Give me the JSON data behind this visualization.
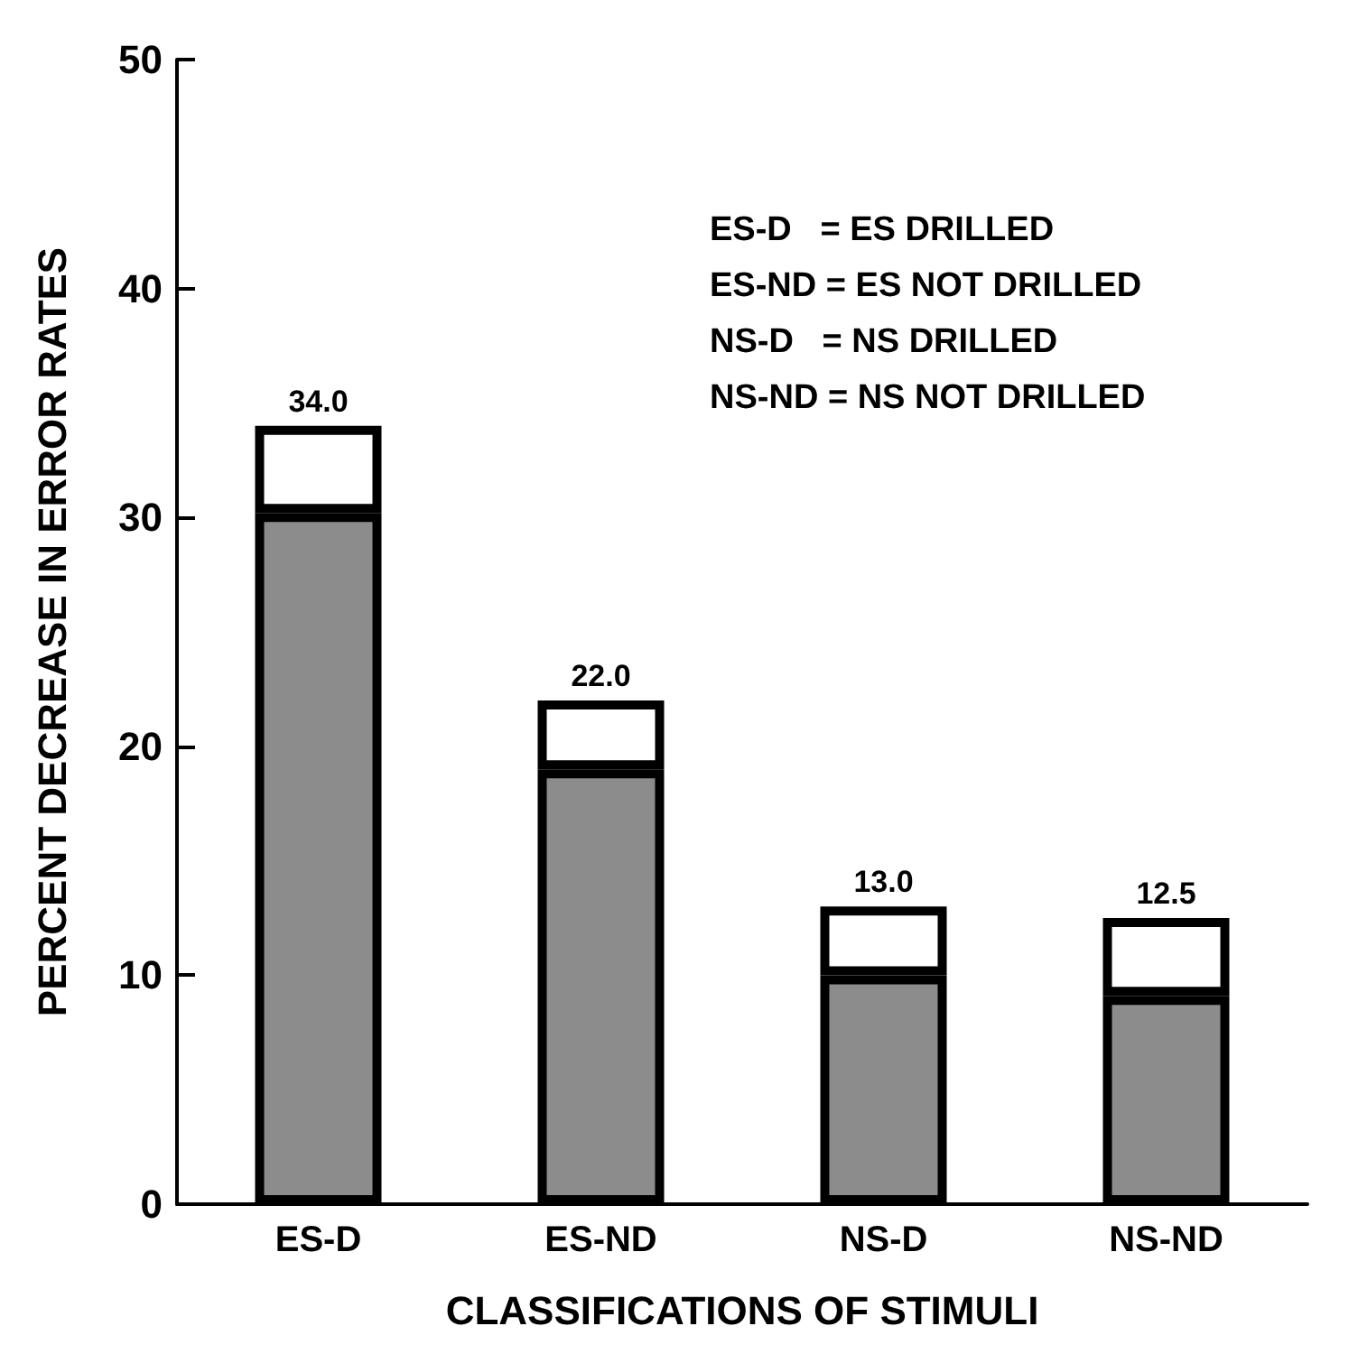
{
  "chart_data": {
    "type": "bar",
    "stacked": true,
    "xlabel": "CLASSIFICATIONS OF STIMULI",
    "ylabel": "PERCENT DECREASE IN ERROR RATES",
    "categories": [
      "ES-D",
      "ES-ND",
      "NS-D",
      "NS-ND"
    ],
    "series": [
      {
        "color": "#8c8c8c",
        "values": [
          30.2,
          19.0,
          10.0,
          9.1
        ]
      },
      {
        "color": "#ffffff",
        "values": [
          3.8,
          3.0,
          3.0,
          3.4
        ]
      }
    ],
    "totals": [
      "34.0",
      "22.0",
      "13.0",
      "12.5"
    ],
    "ylim": [
      0,
      50
    ],
    "yticks": [
      0,
      10,
      20,
      30,
      40,
      50
    ],
    "grid": false,
    "annotations": [
      "ES-D   = ES DRILLED",
      "ES-ND = ES NOT DRILLED",
      "NS-D   = NS DRILLED",
      "NS-ND = NS NOT DRILLED"
    ]
  }
}
